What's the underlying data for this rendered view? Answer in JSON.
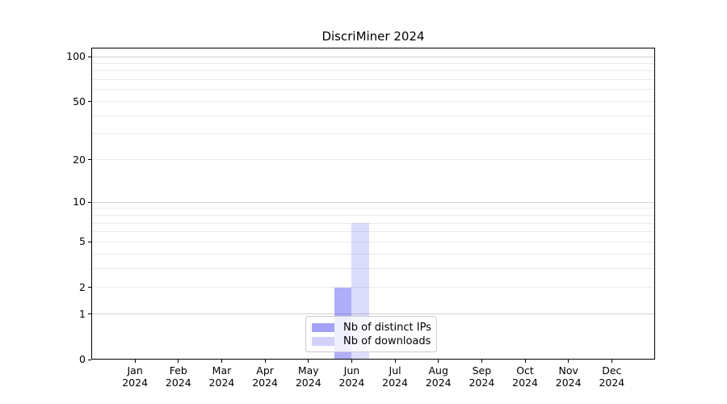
{
  "chart_data": {
    "type": "bar",
    "title": "DiscriMiner 2024",
    "months": [
      "Jan",
      "Feb",
      "Mar",
      "Apr",
      "May",
      "Jun",
      "Jul",
      "Aug",
      "Sep",
      "Oct",
      "Nov",
      "Dec"
    ],
    "year_label": "2024",
    "series": [
      {
        "name": "Nb of distinct IPs",
        "color": "#0a0af0",
        "alpha": 0.33,
        "blended_hex": "#acacf6",
        "values": [
          0,
          0,
          0,
          0,
          0,
          2,
          0,
          0,
          0,
          0,
          0,
          0
        ]
      },
      {
        "name": "Nb of downloads",
        "color": "#0a0af0",
        "alpha": 0.14,
        "blended_hex": "#dcdcfa",
        "values": [
          0,
          0,
          0,
          0,
          0,
          7,
          0,
          0,
          0,
          0,
          0,
          0
        ]
      }
    ],
    "yscale": "log1p",
    "yticks": [
      0,
      1,
      2,
      5,
      10,
      20,
      50,
      100
    ],
    "major_gridlines": [
      1,
      10,
      100
    ],
    "minor_gridlines": [
      2,
      3,
      4,
      5,
      6,
      7,
      8,
      9,
      20,
      30,
      40,
      50,
      60,
      70,
      80,
      90
    ],
    "ylim": [
      0,
      114
    ],
    "grid_minor_color": "#ececec",
    "grid_major_color": "#d2d2d2",
    "axis_color": "#000000",
    "background_color": "#ffffff",
    "legend_position": "lower center",
    "xlabel": "",
    "ylabel": ""
  }
}
